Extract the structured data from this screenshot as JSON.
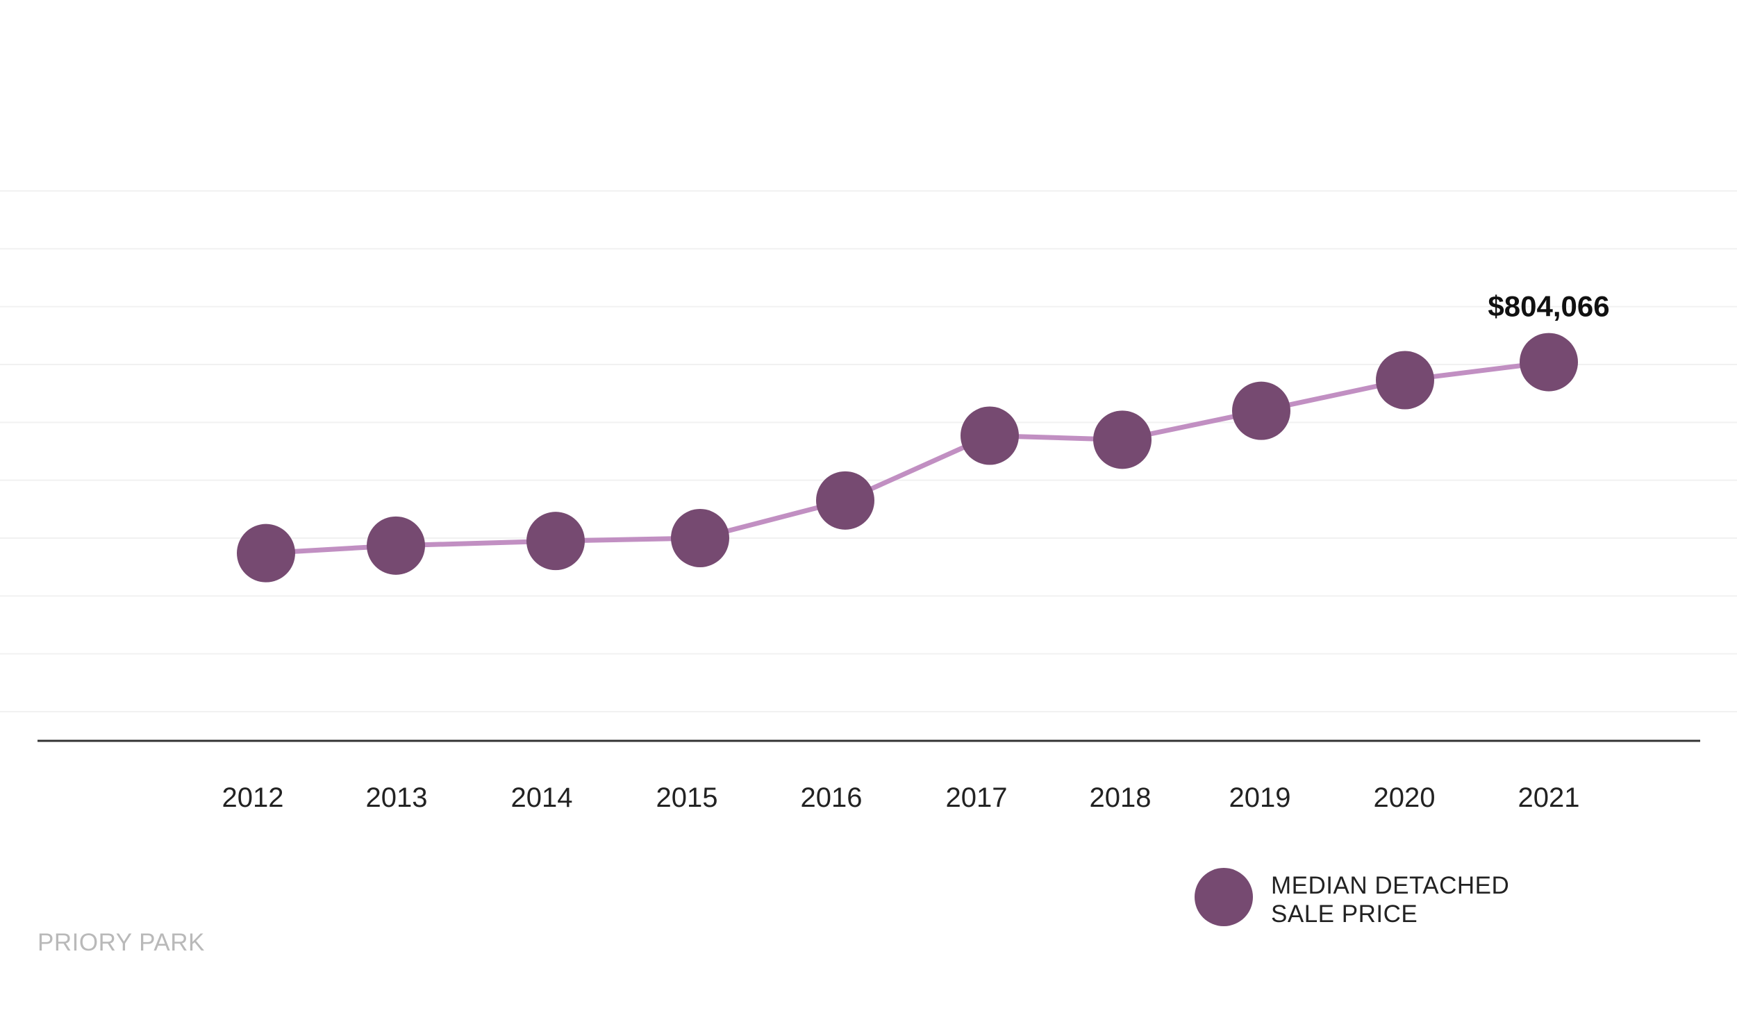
{
  "chart_data": {
    "type": "line",
    "categories": [
      "2012",
      "2013",
      "2014",
      "2015",
      "2016",
      "2017",
      "2018",
      "2019",
      "2020",
      "2021"
    ],
    "series": [
      {
        "name": "MEDIAN DETACHED SALE PRICE",
        "values": [
          474000,
          487000,
          495000,
          500000,
          565000,
          677000,
          670000,
          720000,
          773000,
          804066
        ]
      }
    ],
    "annotations": [
      {
        "category": "2021",
        "text": "$804,066"
      }
    ],
    "ylim": [
      200000,
      1100000
    ],
    "grid": true,
    "legend": "bottom-right",
    "colors": {
      "line": "#c18fc2",
      "marker": "#764a71",
      "axis": "#333333",
      "grid": "#f1f1f1"
    }
  },
  "legend": {
    "line1": "MEDIAN DETACHED",
    "line2": "SALE PRICE"
  },
  "footer": {
    "text": "PRIORY PARK"
  }
}
